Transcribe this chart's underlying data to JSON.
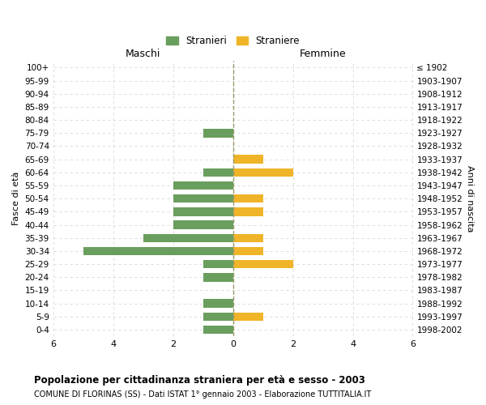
{
  "age_groups": [
    "100+",
    "95-99",
    "90-94",
    "85-89",
    "80-84",
    "75-79",
    "70-74",
    "65-69",
    "60-64",
    "55-59",
    "50-54",
    "45-49",
    "40-44",
    "35-39",
    "30-34",
    "25-29",
    "20-24",
    "15-19",
    "10-14",
    "5-9",
    "0-4"
  ],
  "birth_years": [
    "≤ 1902",
    "1903-1907",
    "1908-1912",
    "1913-1917",
    "1918-1922",
    "1923-1927",
    "1928-1932",
    "1933-1937",
    "1938-1942",
    "1943-1947",
    "1948-1952",
    "1953-1957",
    "1958-1962",
    "1963-1967",
    "1968-1972",
    "1973-1977",
    "1978-1982",
    "1983-1987",
    "1988-1992",
    "1993-1997",
    "1998-2002"
  ],
  "males": [
    0,
    0,
    0,
    0,
    0,
    1,
    0,
    0,
    1,
    2,
    2,
    2,
    2,
    3,
    5,
    1,
    1,
    0,
    1,
    1,
    1
  ],
  "females": [
    0,
    0,
    0,
    0,
    0,
    0,
    0,
    1,
    2,
    0,
    1,
    1,
    0,
    1,
    1,
    2,
    0,
    0,
    0,
    1,
    0
  ],
  "male_color": "#6a9e5e",
  "female_color": "#f0b429",
  "title": "Popolazione per cittadinanza straniera per età e sesso - 2003",
  "subtitle": "COMUNE DI FLORINAS (SS) - Dati ISTAT 1° gennaio 2003 - Elaborazione TUTTITALIA.IT",
  "xlabel_left": "Maschi",
  "xlabel_right": "Femmine",
  "ylabel_left": "Fasce di età",
  "ylabel_right": "Anni di nascita",
  "legend_male": "Stranieri",
  "legend_female": "Straniere",
  "xlim": 6,
  "background_color": "#ffffff",
  "grid_color": "#d8d8d8"
}
